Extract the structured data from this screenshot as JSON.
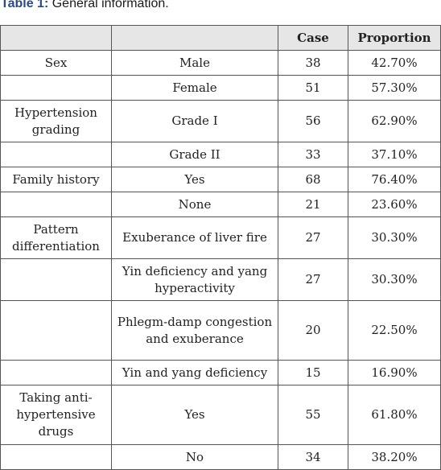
{
  "caption": {
    "label": "Table 1:",
    "text": " General information."
  },
  "table": {
    "headers": [
      "",
      "",
      "Case",
      "Proportion"
    ],
    "rows": [
      {
        "group": "Sex",
        "item": "Male",
        "case": "38",
        "proportion": "42.70%"
      },
      {
        "group": "",
        "item": "Female",
        "case": "51",
        "proportion": "57.30%"
      },
      {
        "group": "Hypertension grading",
        "item": "Grade I",
        "case": "56",
        "proportion": "62.90%"
      },
      {
        "group": "",
        "item": "Grade II",
        "case": "33",
        "proportion": "37.10%"
      },
      {
        "group": "Family history",
        "item": "Yes",
        "case": "68",
        "proportion": "76.40%"
      },
      {
        "group": "",
        "item": "None",
        "case": "21",
        "proportion": "23.60%"
      },
      {
        "group": "Pattern differentiation",
        "item": "Exuberance of liver fire",
        "case": "27",
        "proportion": "30.30%"
      },
      {
        "group": "",
        "item": "Yin deficiency and yang hyperactivity",
        "case": "27",
        "proportion": "30.30%"
      },
      {
        "group": "",
        "item": "Phlegm-damp congestion and exuberance",
        "case": "20",
        "proportion": "22.50%"
      },
      {
        "group": "",
        "item": "Yin and yang deficiency",
        "case": "15",
        "proportion": "16.90%"
      },
      {
        "group": "Taking anti-hypertensive drugs",
        "item": "Yes",
        "case": "55",
        "proportion": "61.80%"
      },
      {
        "group": "",
        "item": "No",
        "case": "34",
        "proportion": "38.20%"
      }
    ]
  }
}
